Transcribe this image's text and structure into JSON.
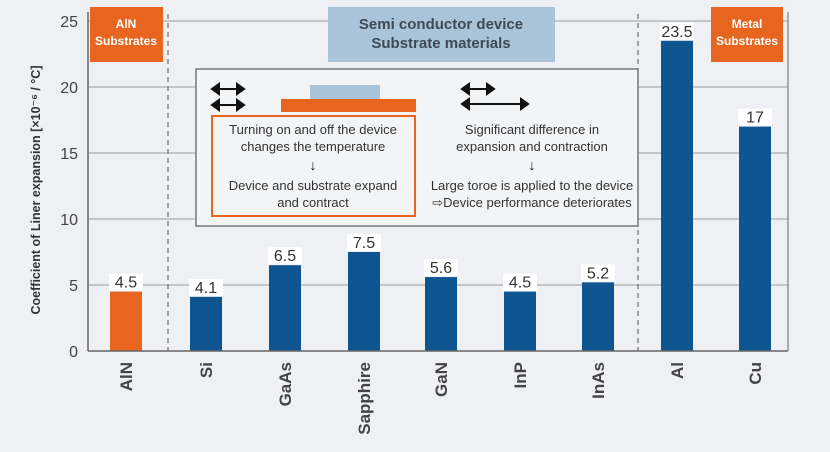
{
  "chart_data": {
    "type": "bar",
    "ylabel": "Coefficient of Liner expansion [×10⁻⁶ / °C]",
    "ylim": [
      0,
      25
    ],
    "yticks": [
      0,
      5,
      10,
      15,
      20,
      25
    ],
    "grid": true,
    "categories": [
      "AlN",
      "Si",
      "GaAs",
      "Sapphire",
      "GaN",
      "InP",
      "InAs",
      "Al",
      "Cu"
    ],
    "values": [
      4.5,
      4.1,
      6.5,
      7.5,
      5.6,
      4.5,
      5.2,
      23.5,
      17
    ],
    "value_labels": [
      "4.5",
      "4.1",
      "6.5",
      "7.5",
      "5.6",
      "4.5",
      "5.2",
      "23.5",
      "17"
    ],
    "groups": [
      {
        "label_line1": "AlN",
        "label_line2": "Substrates",
        "color": "#e8651f"
      },
      {
        "label_line1": "Semi conductor device",
        "label_line2": "Substrate materials",
        "color": "#a9c4d8"
      },
      {
        "label_line1": "Metal",
        "label_line2": "Substrates",
        "color": "#e8651f"
      }
    ],
    "colors": {
      "aln": "#e8651f",
      "others": "#0f5592",
      "axis": "#666666"
    }
  },
  "inset": {
    "left_text_1": "Turning on and off the device",
    "left_text_2": "changes the temperature",
    "left_text_3": "Device and substrate expand",
    "left_text_4": "and contract",
    "right_text_1": "Significant difference in",
    "right_text_2": "expansion and contraction",
    "right_text_3": "Large toroe is applied to the device",
    "right_text_4": "⇨Device performance deteriorates",
    "down_arrow": "↓"
  }
}
